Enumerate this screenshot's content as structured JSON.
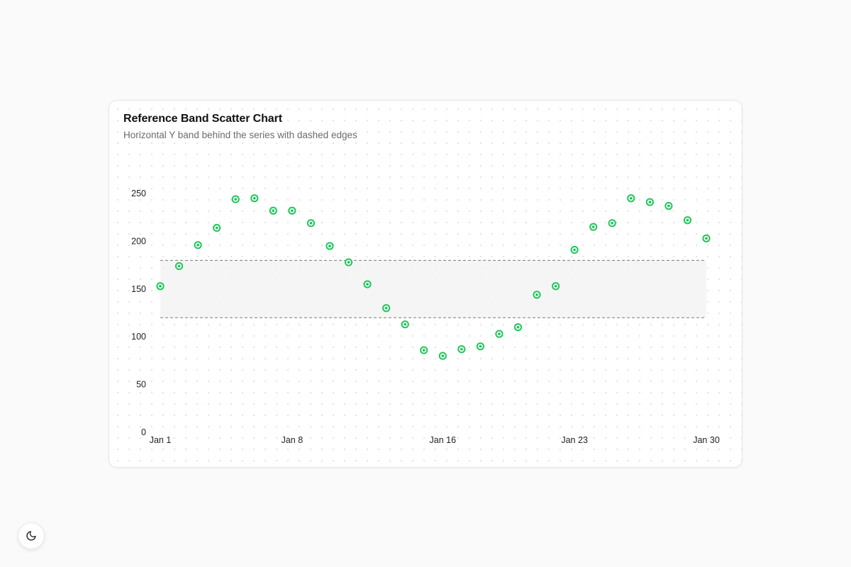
{
  "card": {
    "title": "Reference Band Scatter Chart",
    "subtitle": "Horizontal Y band behind the series with dashed edges"
  },
  "theme_toggle": {
    "icon": "moon-icon"
  },
  "chart_data": {
    "type": "scatter",
    "title": "Reference Band Scatter Chart",
    "subtitle": "Horizontal Y band behind the series with dashed edges",
    "xlabel": "",
    "ylabel": "",
    "x": [
      "Jan 1",
      "Jan 2",
      "Jan 3",
      "Jan 4",
      "Jan 5",
      "Jan 6",
      "Jan 7",
      "Jan 8",
      "Jan 9",
      "Jan 10",
      "Jan 11",
      "Jan 12",
      "Jan 13",
      "Jan 14",
      "Jan 15",
      "Jan 16",
      "Jan 17",
      "Jan 18",
      "Jan 19",
      "Jan 20",
      "Jan 21",
      "Jan 22",
      "Jan 23",
      "Jan 24",
      "Jan 25",
      "Jan 26",
      "Jan 27",
      "Jan 28",
      "Jan 29",
      "Jan 30"
    ],
    "x_tick_labels": [
      "Jan 1",
      "Jan 8",
      "Jan 16",
      "Jan 23",
      "Jan 30"
    ],
    "values": [
      153,
      174,
      196,
      214,
      244,
      245,
      232,
      232,
      219,
      195,
      178,
      155,
      130,
      113,
      86,
      80,
      87,
      90,
      103,
      110,
      144,
      153,
      191,
      215,
      219,
      245,
      241,
      237,
      222,
      203
    ],
    "ylim": [
      0,
      250
    ],
    "y_ticks": [
      0,
      50,
      100,
      150,
      200,
      250
    ],
    "reference_band": {
      "y_min": 120,
      "y_max": 180,
      "edge_style": "dashed"
    },
    "grid": false,
    "colors": {
      "point": "#22c55e",
      "band_fill": "#f3f3f3",
      "band_edge": "#7a7a7a"
    }
  }
}
